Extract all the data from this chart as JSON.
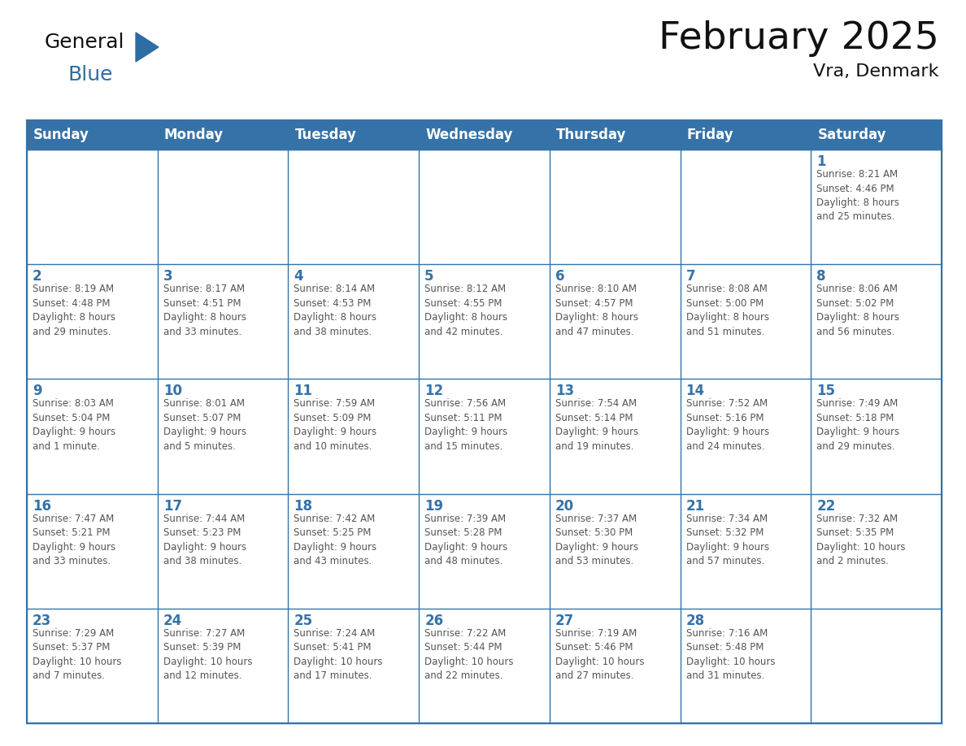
{
  "title": "February 2025",
  "subtitle": "Vra, Denmark",
  "header_color": "#3572a8",
  "header_text_color": "#FFFFFF",
  "cell_border_color": "#3572a8",
  "day_number_color": "#3572a8",
  "info_text_color": "#555555",
  "background_color": "#FFFFFF",
  "alt_row_color": "#f0f0f0",
  "days_of_week": [
    "Sunday",
    "Monday",
    "Tuesday",
    "Wednesday",
    "Thursday",
    "Friday",
    "Saturday"
  ],
  "weeks": [
    [
      {
        "day": null,
        "info": ""
      },
      {
        "day": null,
        "info": ""
      },
      {
        "day": null,
        "info": ""
      },
      {
        "day": null,
        "info": ""
      },
      {
        "day": null,
        "info": ""
      },
      {
        "day": null,
        "info": ""
      },
      {
        "day": 1,
        "info": "Sunrise: 8:21 AM\nSunset: 4:46 PM\nDaylight: 8 hours\nand 25 minutes."
      }
    ],
    [
      {
        "day": 2,
        "info": "Sunrise: 8:19 AM\nSunset: 4:48 PM\nDaylight: 8 hours\nand 29 minutes."
      },
      {
        "day": 3,
        "info": "Sunrise: 8:17 AM\nSunset: 4:51 PM\nDaylight: 8 hours\nand 33 minutes."
      },
      {
        "day": 4,
        "info": "Sunrise: 8:14 AM\nSunset: 4:53 PM\nDaylight: 8 hours\nand 38 minutes."
      },
      {
        "day": 5,
        "info": "Sunrise: 8:12 AM\nSunset: 4:55 PM\nDaylight: 8 hours\nand 42 minutes."
      },
      {
        "day": 6,
        "info": "Sunrise: 8:10 AM\nSunset: 4:57 PM\nDaylight: 8 hours\nand 47 minutes."
      },
      {
        "day": 7,
        "info": "Sunrise: 8:08 AM\nSunset: 5:00 PM\nDaylight: 8 hours\nand 51 minutes."
      },
      {
        "day": 8,
        "info": "Sunrise: 8:06 AM\nSunset: 5:02 PM\nDaylight: 8 hours\nand 56 minutes."
      }
    ],
    [
      {
        "day": 9,
        "info": "Sunrise: 8:03 AM\nSunset: 5:04 PM\nDaylight: 9 hours\nand 1 minute."
      },
      {
        "day": 10,
        "info": "Sunrise: 8:01 AM\nSunset: 5:07 PM\nDaylight: 9 hours\nand 5 minutes."
      },
      {
        "day": 11,
        "info": "Sunrise: 7:59 AM\nSunset: 5:09 PM\nDaylight: 9 hours\nand 10 minutes."
      },
      {
        "day": 12,
        "info": "Sunrise: 7:56 AM\nSunset: 5:11 PM\nDaylight: 9 hours\nand 15 minutes."
      },
      {
        "day": 13,
        "info": "Sunrise: 7:54 AM\nSunset: 5:14 PM\nDaylight: 9 hours\nand 19 minutes."
      },
      {
        "day": 14,
        "info": "Sunrise: 7:52 AM\nSunset: 5:16 PM\nDaylight: 9 hours\nand 24 minutes."
      },
      {
        "day": 15,
        "info": "Sunrise: 7:49 AM\nSunset: 5:18 PM\nDaylight: 9 hours\nand 29 minutes."
      }
    ],
    [
      {
        "day": 16,
        "info": "Sunrise: 7:47 AM\nSunset: 5:21 PM\nDaylight: 9 hours\nand 33 minutes."
      },
      {
        "day": 17,
        "info": "Sunrise: 7:44 AM\nSunset: 5:23 PM\nDaylight: 9 hours\nand 38 minutes."
      },
      {
        "day": 18,
        "info": "Sunrise: 7:42 AM\nSunset: 5:25 PM\nDaylight: 9 hours\nand 43 minutes."
      },
      {
        "day": 19,
        "info": "Sunrise: 7:39 AM\nSunset: 5:28 PM\nDaylight: 9 hours\nand 48 minutes."
      },
      {
        "day": 20,
        "info": "Sunrise: 7:37 AM\nSunset: 5:30 PM\nDaylight: 9 hours\nand 53 minutes."
      },
      {
        "day": 21,
        "info": "Sunrise: 7:34 AM\nSunset: 5:32 PM\nDaylight: 9 hours\nand 57 minutes."
      },
      {
        "day": 22,
        "info": "Sunrise: 7:32 AM\nSunset: 5:35 PM\nDaylight: 10 hours\nand 2 minutes."
      }
    ],
    [
      {
        "day": 23,
        "info": "Sunrise: 7:29 AM\nSunset: 5:37 PM\nDaylight: 10 hours\nand 7 minutes."
      },
      {
        "day": 24,
        "info": "Sunrise: 7:27 AM\nSunset: 5:39 PM\nDaylight: 10 hours\nand 12 minutes."
      },
      {
        "day": 25,
        "info": "Sunrise: 7:24 AM\nSunset: 5:41 PM\nDaylight: 10 hours\nand 17 minutes."
      },
      {
        "day": 26,
        "info": "Sunrise: 7:22 AM\nSunset: 5:44 PM\nDaylight: 10 hours\nand 22 minutes."
      },
      {
        "day": 27,
        "info": "Sunrise: 7:19 AM\nSunset: 5:46 PM\nDaylight: 10 hours\nand 27 minutes."
      },
      {
        "day": 28,
        "info": "Sunrise: 7:16 AM\nSunset: 5:48 PM\nDaylight: 10 hours\nand 31 minutes."
      },
      {
        "day": null,
        "info": ""
      }
    ]
  ],
  "logo_general_color": "#111111",
  "logo_blue_color": "#2E6DA4",
  "title_fontsize": 34,
  "subtitle_fontsize": 16,
  "header_fontsize": 12,
  "day_number_fontsize": 12,
  "info_fontsize": 8.5
}
